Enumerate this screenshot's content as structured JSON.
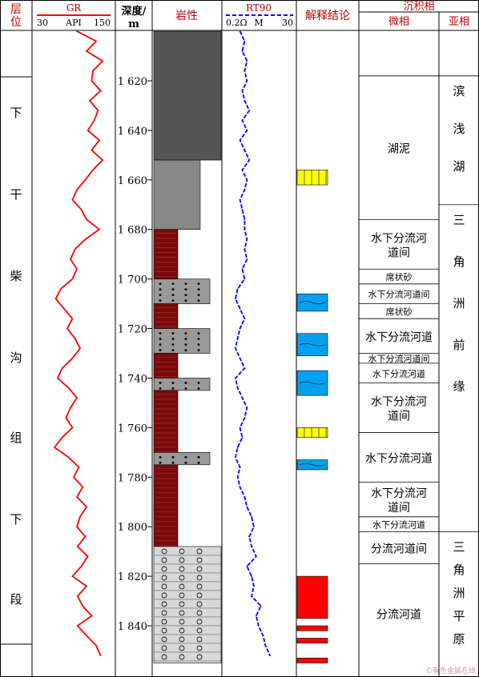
{
  "headers": {
    "layer": "层位",
    "gr_title": "GR",
    "gr_scale_min": "30",
    "gr_scale_unit": "API",
    "gr_scale_max": "150",
    "depth": "深度/m",
    "lithology": "岩性",
    "rt_title": "RT90",
    "rt_scale_min": "0.2Ω",
    "rt_scale_unit": "M",
    "rt_scale_max": "30",
    "interpretation": "解释结论",
    "facies": "沉积相",
    "microfacies": "微相",
    "subfacies": "亚相"
  },
  "formation": [
    "下",
    "干",
    "柴",
    "沟",
    "组",
    "下",
    "段"
  ],
  "depth_ticks": [
    "1 620",
    "1 640",
    "1 660",
    "1 680",
    "1 700",
    "1 720",
    "1 740",
    "1 760",
    "1 780",
    "1 800",
    "1 820",
    "1 840"
  ],
  "microfacies": [
    {
      "label": "湖泥"
    },
    {
      "label": "水下分流河道间"
    },
    {
      "label": "席状砂"
    },
    {
      "label": "水下分流河道间"
    },
    {
      "label": "席状砂"
    },
    {
      "label": "水下分流河道"
    },
    {
      "label": "水下分流河道间"
    },
    {
      "label": "水下分流河道"
    },
    {
      "label": "水下分流河道间"
    },
    {
      "label": "水下分流河道"
    },
    {
      "label": "水下分流河道间"
    },
    {
      "label": "水下分流河道"
    },
    {
      "label": "分流河道间"
    },
    {
      "label": "分流河道"
    }
  ],
  "subfacies": [
    {
      "label": "滨浅湖"
    },
    {
      "label": "三角洲前缘"
    },
    {
      "label": "三角洲平原"
    }
  ],
  "interpretation_legend": {
    "yellow": "#ffff00",
    "blue": "#00a0f0",
    "red": "#ff0000"
  },
  "watermark": "©有色金属在线",
  "chart_data": {
    "type": "line",
    "y_axis": "depth (m)",
    "ylim": [
      1600,
      1855
    ],
    "series": [
      {
        "name": "GR",
        "unit": "API",
        "xlim": [
          30,
          150
        ],
        "color": "#ff0000",
        "depth": [
          1600,
          1604,
          1608,
          1612,
          1616,
          1620,
          1624,
          1628,
          1632,
          1636,
          1640,
          1644,
          1648,
          1652,
          1656,
          1660,
          1664,
          1668,
          1672,
          1676,
          1680,
          1684,
          1688,
          1692,
          1696,
          1700,
          1704,
          1708,
          1712,
          1716,
          1720,
          1724,
          1728,
          1732,
          1736,
          1740,
          1744,
          1748,
          1752,
          1756,
          1760,
          1764,
          1768,
          1772,
          1776,
          1780,
          1784,
          1788,
          1792,
          1796,
          1800,
          1804,
          1808,
          1812,
          1816,
          1820,
          1824,
          1828,
          1832,
          1836,
          1840,
          1844,
          1848,
          1852
        ],
        "values": [
          95,
          125,
          110,
          135,
          120,
          118,
          132,
          115,
          128,
          122,
          112,
          130,
          118,
          135,
          120,
          108,
          95,
          88,
          102,
          110,
          130,
          108,
          92,
          85,
          95,
          88,
          70,
          62,
          75,
          88,
          80,
          92,
          100,
          88,
          72,
          65,
          82,
          95,
          85,
          78,
          88,
          72,
          60,
          82,
          98,
          90,
          104,
          95,
          110,
          100,
          95,
          108,
          96,
          112,
          102,
          88,
          110,
          96,
          104,
          118,
          96,
          110,
          125,
          132
        ]
      },
      {
        "name": "RT90",
        "unit": "Ω·m",
        "xlim": [
          0.2,
          30
        ],
        "color": "#0000ff",
        "depth": [
          1600,
          1604,
          1608,
          1612,
          1616,
          1620,
          1624,
          1628,
          1632,
          1636,
          1640,
          1644,
          1648,
          1652,
          1656,
          1660,
          1664,
          1668,
          1672,
          1676,
          1680,
          1684,
          1688,
          1692,
          1696,
          1700,
          1704,
          1708,
          1712,
          1716,
          1720,
          1724,
          1728,
          1732,
          1736,
          1740,
          1744,
          1748,
          1752,
          1756,
          1760,
          1764,
          1768,
          1772,
          1776,
          1780,
          1784,
          1788,
          1792,
          1796,
          1800,
          1804,
          1808,
          1812,
          1816,
          1820,
          1824,
          1828,
          1832,
          1836,
          1840,
          1844,
          1848,
          1852
        ],
        "values": [
          7,
          9,
          8,
          10,
          9,
          10,
          8,
          9,
          11,
          8,
          10,
          7,
          9,
          11,
          8,
          10,
          9,
          7,
          8,
          9,
          9,
          10,
          9,
          10,
          8,
          9,
          6,
          5,
          7,
          9,
          7,
          6,
          5,
          7,
          9,
          5,
          6,
          8,
          10,
          9,
          7,
          8,
          6,
          5,
          7,
          6,
          7,
          9,
          10,
          12,
          13,
          11,
          12,
          14,
          10,
          12,
          13,
          12,
          16,
          14,
          15,
          17,
          18,
          20
        ]
      }
    ],
    "interpretation_intervals": [
      {
        "top": 1656,
        "bottom": 1662,
        "type": "yellow"
      },
      {
        "top": 1706,
        "bottom": 1713,
        "type": "blue"
      },
      {
        "top": 1722,
        "bottom": 1731,
        "type": "blue"
      },
      {
        "top": 1737,
        "bottom": 1747,
        "type": "blue"
      },
      {
        "top": 1760,
        "bottom": 1764,
        "type": "yellow"
      },
      {
        "top": 1773,
        "bottom": 1777,
        "type": "blue"
      },
      {
        "top": 1820,
        "bottom": 1837,
        "type": "red"
      },
      {
        "top": 1840,
        "bottom": 1842,
        "type": "red"
      },
      {
        "top": 1845,
        "bottom": 1847,
        "type": "red"
      },
      {
        "top": 1853,
        "bottom": 1855,
        "type": "red"
      }
    ],
    "lithology_intervals": [
      {
        "top": 1600,
        "bottom": 1652,
        "type": "mudstone-dark"
      },
      {
        "top": 1652,
        "bottom": 1680,
        "type": "mudstone-gray"
      },
      {
        "top": 1680,
        "bottom": 1700,
        "type": "mudstone-red"
      },
      {
        "top": 1700,
        "bottom": 1710,
        "type": "sandstone"
      },
      {
        "top": 1710,
        "bottom": 1720,
        "type": "mudstone-red"
      },
      {
        "top": 1720,
        "bottom": 1730,
        "type": "sandstone"
      },
      {
        "top": 1730,
        "bottom": 1740,
        "type": "mudstone-red"
      },
      {
        "top": 1740,
        "bottom": 1745,
        "type": "sandstone"
      },
      {
        "top": 1745,
        "bottom": 1770,
        "type": "mudstone-red"
      },
      {
        "top": 1770,
        "bottom": 1775,
        "type": "sandstone"
      },
      {
        "top": 1775,
        "bottom": 1808,
        "type": "mudstone-red"
      },
      {
        "top": 1808,
        "bottom": 1855,
        "type": "conglomerate"
      }
    ]
  }
}
